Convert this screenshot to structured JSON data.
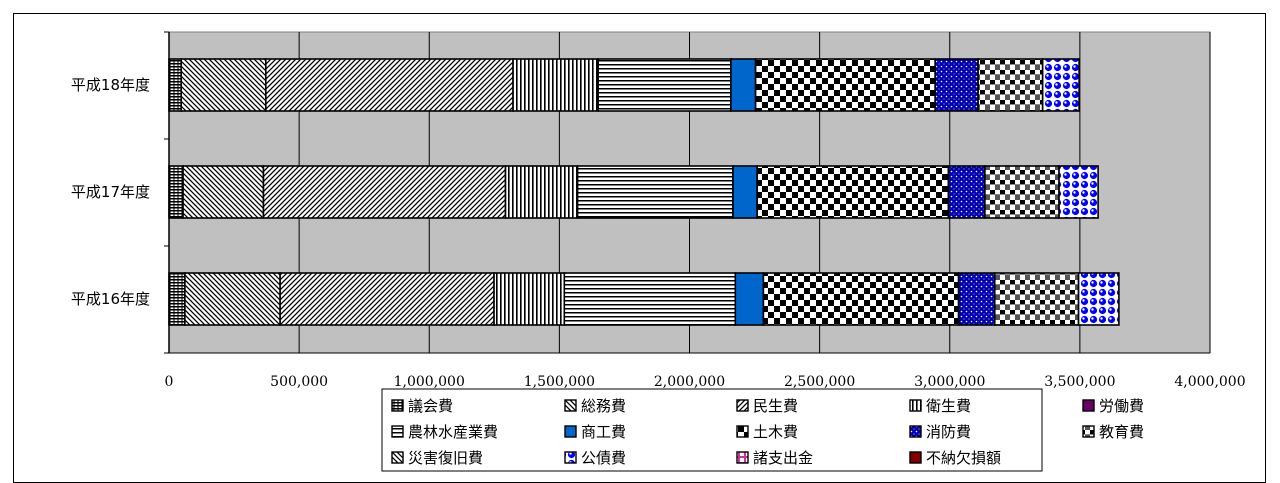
{
  "chart_data": {
    "type": "bar",
    "orientation": "horizontal",
    "stacked": true,
    "categories": [
      "平成18年度",
      "平成17年度",
      "平成16年度"
    ],
    "x_ticks": [
      "0",
      "500,000",
      "1,000,000",
      "1,500,000",
      "2,000,000",
      "2,500,000",
      "3,000,000",
      "3,500,000",
      "4,000,000"
    ],
    "xlim": [
      0,
      4000000
    ],
    "grid": true,
    "legend_position": "bottom",
    "series": [
      {
        "name": "議会費",
        "values": [
          47000,
          54000,
          61000
        ],
        "pattern": "hline-dense",
        "color": "#000000"
      },
      {
        "name": "総務費",
        "values": [
          325000,
          309000,
          366000
        ],
        "pattern": "diag-back",
        "color": "#000000"
      },
      {
        "name": "民生費",
        "values": [
          950000,
          930000,
          822000
        ],
        "pattern": "diag-fwd",
        "color": "#000000"
      },
      {
        "name": "衛生費",
        "values": [
          327000,
          277000,
          270000
        ],
        "pattern": "vline",
        "color": "#000000"
      },
      {
        "name": "労働費",
        "values": [
          0,
          0,
          0
        ],
        "pattern": "solid",
        "color": "#660066"
      },
      {
        "name": "農林水産業費",
        "values": [
          510000,
          597000,
          657000
        ],
        "pattern": "hline",
        "color": "#000000"
      },
      {
        "name": "商工費",
        "values": [
          95000,
          93000,
          108000
        ],
        "pattern": "solid",
        "color": "#0066cc"
      },
      {
        "name": "土木費",
        "values": [
          690000,
          735000,
          750000
        ],
        "pattern": "checker",
        "color": "#000000"
      },
      {
        "name": "消防費",
        "values": [
          165000,
          140000,
          139000
        ],
        "pattern": "dots-blue",
        "color": "#0000aa"
      },
      {
        "name": "教育費",
        "values": [
          248000,
          285000,
          322000
        ],
        "pattern": "checker-small",
        "color": "#000000"
      },
      {
        "name": "災害復旧費",
        "values": [
          0,
          0,
          0
        ],
        "pattern": "diag-back",
        "color": "#000000"
      },
      {
        "name": "公債費",
        "values": [
          140000,
          150000,
          155000
        ],
        "pattern": "circles-blue",
        "color": "#0000ff"
      },
      {
        "name": "諸支出金",
        "values": [
          0,
          0,
          0
        ],
        "pattern": "pink",
        "color": "#cc3399"
      },
      {
        "name": "不納欠損額",
        "values": [
          0,
          0,
          0
        ],
        "pattern": "solid",
        "color": "#800000"
      }
    ]
  }
}
